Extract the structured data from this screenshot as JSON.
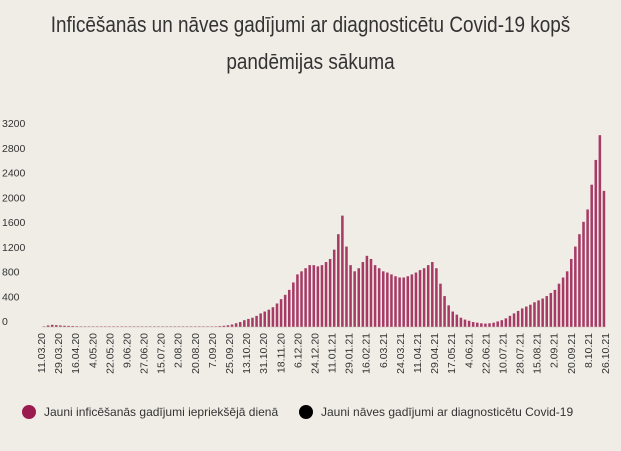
{
  "title": "Inficēšanās un nāves gadījumi ar diagnosticētu Covid-19 kopš pandēmijas sākuma",
  "colors": {
    "cases": "#9b1b4f",
    "deaths": "#000000",
    "background": "#efede6"
  },
  "legend": [
    {
      "label": "Jauni inficēšanās gadījumi iepriekšējā dienā",
      "color": "#9b1b4f"
    },
    {
      "label": "Jauni nāves gadījumi ar diagnosticētu Covid-19",
      "color": "#000000"
    }
  ],
  "chart_data": {
    "type": "bar",
    "title": "Inficēšanās un nāves gadījumi ar diagnosticētu Covid-19 kopš pandēmijas sākuma",
    "xlabel": "",
    "ylabel": "",
    "ylim": [
      0,
      3200
    ],
    "yticks": [
      0,
      400,
      800,
      1200,
      1600,
      2000,
      2400,
      2800,
      3200
    ],
    "x_tick_labels": [
      "11.03.20",
      "29.03.20",
      "16.04.20",
      "4.05.20",
      "22.05.20",
      "9.06.20",
      "27.06.20",
      "15.07.20",
      "2.08.20",
      "20.08.20",
      "7.09.20",
      "25.09.20",
      "13.10.20",
      "31.10.20",
      "18.11.20",
      "6.12.20",
      "24.12.20",
      "11.01.21",
      "29.01.21",
      "16.02.21",
      "6.03.21",
      "24.03.21",
      "11.04.21",
      "29.04.21",
      "17.05.21",
      "4.06.21",
      "22.06.21",
      "10.07.21",
      "28.07.21",
      "15.08.21",
      "2.09.21",
      "20.09.21",
      "8.10.21",
      "26.10.21"
    ],
    "grid": false,
    "legend_position": "bottom",
    "series": [
      {
        "name": "Jauni inficēšanās gadījumi iepriekšējā dienā",
        "color": "#9b1b4f",
        "sampling": "approximate value every 3 days from 11.03.20 to 26.10.21",
        "values": [
          10,
          25,
          35,
          30,
          25,
          20,
          18,
          15,
          12,
          10,
          10,
          8,
          8,
          6,
          5,
          5,
          5,
          4,
          4,
          5,
          4,
          3,
          3,
          3,
          4,
          3,
          3,
          3,
          4,
          4,
          3,
          3,
          3,
          3,
          4,
          4,
          4,
          5,
          5,
          6,
          6,
          8,
          10,
          14,
          20,
          28,
          40,
          60,
          80,
          110,
          130,
          150,
          180,
          220,
          250,
          280,
          320,
          380,
          450,
          520,
          600,
          720,
          850,
          900,
          950,
          1000,
          1000,
          980,
          1000,
          1050,
          1100,
          1250,
          1500,
          1800,
          1300,
          1000,
          900,
          950,
          1050,
          1150,
          1100,
          1000,
          950,
          900,
          880,
          850,
          820,
          800,
          800,
          820,
          850,
          880,
          920,
          950,
          1000,
          1050,
          950,
          700,
          500,
          350,
          250,
          200,
          150,
          120,
          100,
          80,
          70,
          60,
          55,
          60,
          70,
          90,
          110,
          140,
          180,
          220,
          260,
          300,
          330,
          360,
          400,
          430,
          460,
          500,
          550,
          600,
          700,
          800,
          900,
          1100,
          1300,
          1500,
          1700,
          1900,
          2300,
          2700,
          3100,
          2200
        ]
      },
      {
        "name": "Jauni nāves gadījumi ar diagnosticētu Covid-19",
        "color": "#000000",
        "values": []
      }
    ]
  }
}
